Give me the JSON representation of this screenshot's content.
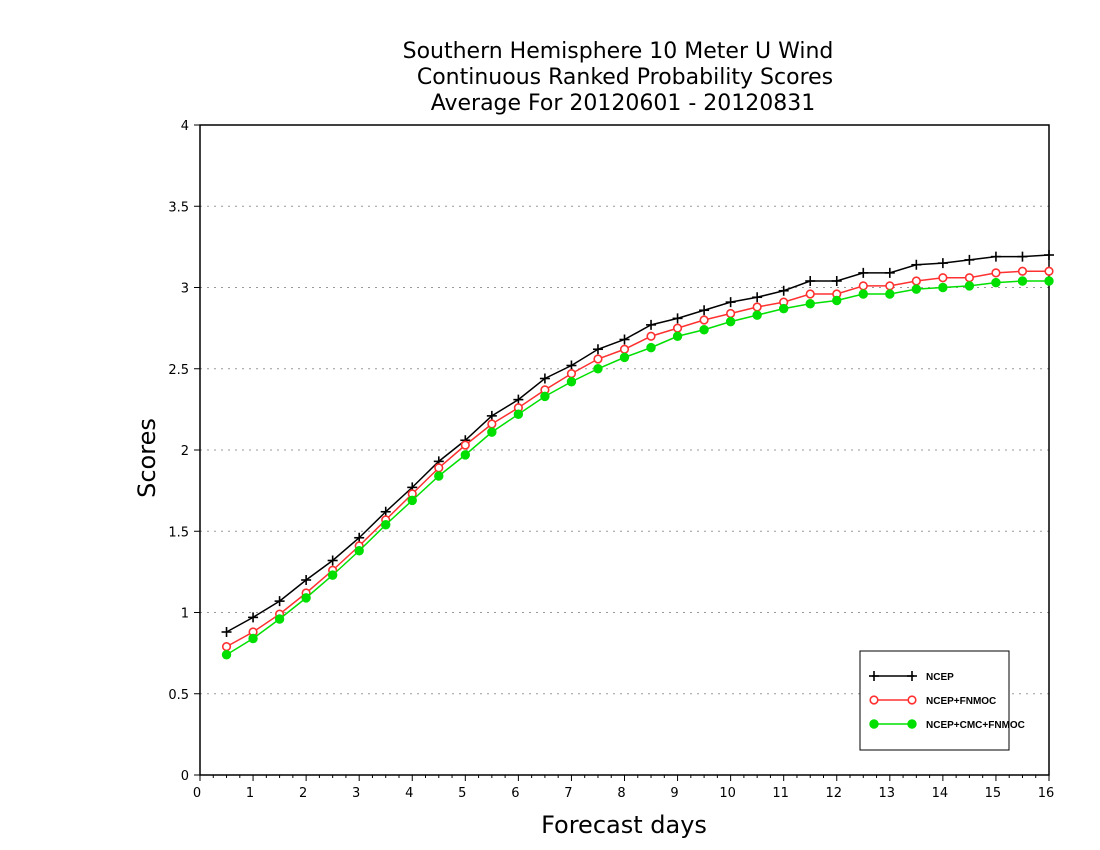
{
  "chart_data": {
    "type": "line",
    "title": [
      "Southern Hemisphere 10 Meter U Wind",
      "Continuous Ranked Probability Scores",
      "Average For 20120601 - 20120831"
    ],
    "xlabel": "Forecast days",
    "ylabel": "Scores",
    "xlim": [
      0,
      16
    ],
    "ylim": [
      0,
      4
    ],
    "xticks": [
      "0",
      "1",
      "2",
      "3",
      "4",
      "5",
      "6",
      "7",
      "8",
      "9",
      "10",
      "11",
      "12",
      "13",
      "14",
      "15",
      "16"
    ],
    "yticks": [
      "0",
      "0.5",
      "1",
      "1.5",
      "2",
      "2.5",
      "3",
      "3.5",
      "4"
    ],
    "grid": "horizontal dotted",
    "legend_position": "bottom-right",
    "x": [
      0.5,
      1,
      1.5,
      2,
      2.5,
      3,
      3.5,
      4,
      4.5,
      5,
      5.5,
      6,
      6.5,
      7,
      7.5,
      8,
      8.5,
      9,
      9.5,
      10,
      10.5,
      11,
      11.5,
      12,
      12.5,
      13,
      13.5,
      14,
      14.5,
      15,
      15.5,
      16
    ],
    "series": [
      {
        "name": "NCEP",
        "color": "#000000",
        "marker": "plus",
        "values": [
          0.88,
          0.97,
          1.07,
          1.2,
          1.32,
          1.46,
          1.62,
          1.77,
          1.93,
          2.06,
          2.21,
          2.31,
          2.44,
          2.52,
          2.62,
          2.68,
          2.77,
          2.81,
          2.86,
          2.91,
          2.94,
          2.98,
          3.04,
          3.04,
          3.09,
          3.09,
          3.14,
          3.15,
          3.17,
          3.19,
          3.19,
          3.2
        ]
      },
      {
        "name": "NCEP+FNMOC",
        "color": "#ff3030",
        "marker": "open-circle",
        "values": [
          0.79,
          0.88,
          0.99,
          1.12,
          1.26,
          1.41,
          1.57,
          1.73,
          1.89,
          2.03,
          2.16,
          2.26,
          2.37,
          2.47,
          2.56,
          2.62,
          2.7,
          2.75,
          2.8,
          2.84,
          2.88,
          2.91,
          2.96,
          2.96,
          3.01,
          3.01,
          3.04,
          3.06,
          3.06,
          3.09,
          3.1,
          3.1
        ]
      },
      {
        "name": "NCEP+CMC+FNMOC",
        "color": "#00e000",
        "marker": "filled-circle",
        "values": [
          0.74,
          0.84,
          0.96,
          1.09,
          1.23,
          1.38,
          1.54,
          1.69,
          1.84,
          1.97,
          2.11,
          2.22,
          2.33,
          2.42,
          2.5,
          2.57,
          2.63,
          2.7,
          2.74,
          2.79,
          2.83,
          2.87,
          2.9,
          2.92,
          2.96,
          2.96,
          2.99,
          3.0,
          3.01,
          3.03,
          3.04,
          3.04
        ]
      }
    ]
  }
}
